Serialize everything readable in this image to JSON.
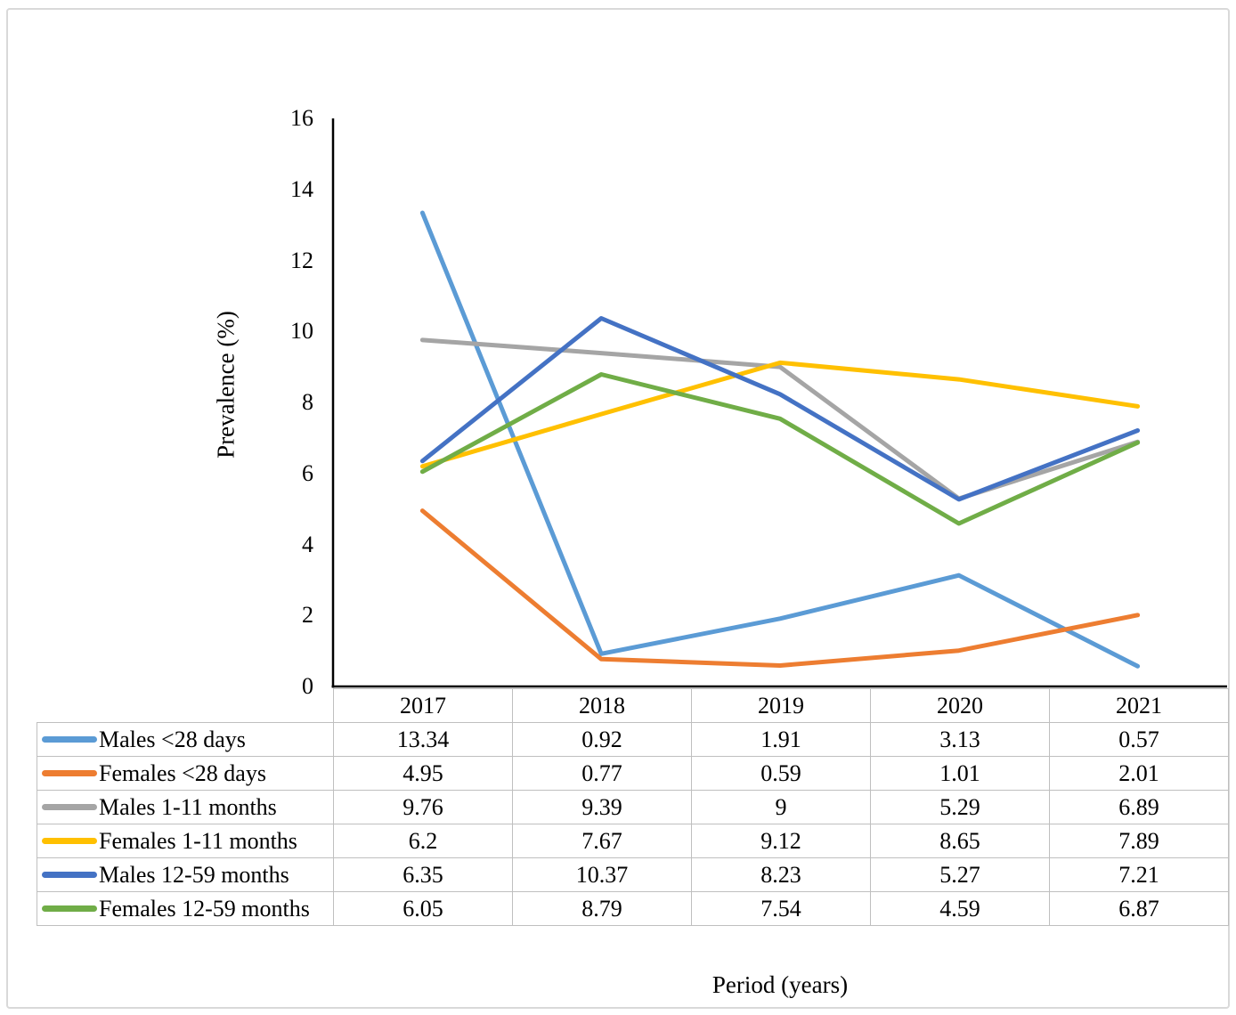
{
  "chart_data": {
    "type": "line",
    "title": "",
    "xlabel": "Period (years)",
    "ylabel": "Prevalence (%)",
    "categories": [
      "2017",
      "2018",
      "2019",
      "2020",
      "2021"
    ],
    "series": [
      {
        "name": "Males <28 days",
        "color": "#5B9BD5",
        "values": [
          13.34,
          0.92,
          1.91,
          3.13,
          0.57
        ]
      },
      {
        "name": "Females <28 days",
        "color": "#ED7D31",
        "values": [
          4.95,
          0.77,
          0.59,
          1.01,
          2.01
        ]
      },
      {
        "name": "Males 1-11 months",
        "color": "#A5A5A5",
        "values": [
          9.76,
          9.39,
          9,
          5.29,
          6.89
        ]
      },
      {
        "name": "Females 1-11 months",
        "color": "#FFC000",
        "values": [
          6.2,
          7.67,
          9.12,
          8.65,
          7.89
        ]
      },
      {
        "name": "Males 12-59 months",
        "color": "#4472C4",
        "values": [
          6.35,
          10.37,
          8.23,
          5.27,
          7.21
        ]
      },
      {
        "name": "Females 12-59 months",
        "color": "#70AD47",
        "values": [
          6.05,
          8.79,
          7.54,
          4.59,
          6.87
        ]
      }
    ],
    "ylim": [
      0,
      16
    ],
    "yticks": [
      0,
      2,
      4,
      6,
      8,
      10,
      12,
      14,
      16
    ],
    "grid": false,
    "legend_position": "data-table-left-column",
    "data_table": true,
    "axis_color": "#000000",
    "table_border_color": "#bfbfbf",
    "frame_border_color": "#d9d9d9"
  }
}
